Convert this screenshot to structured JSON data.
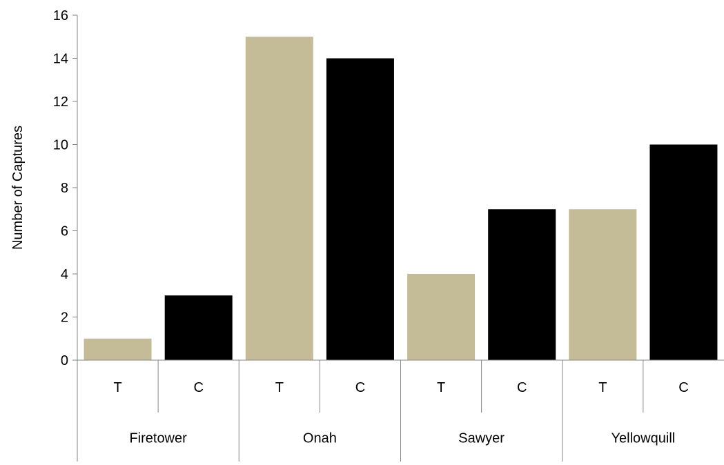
{
  "chart_data": {
    "type": "bar",
    "title": "",
    "xlabel": "",
    "ylabel": "Number of Captures",
    "ylim": [
      0,
      16
    ],
    "yticks": [
      0,
      2,
      4,
      6,
      8,
      10,
      12,
      14,
      16
    ],
    "grid": false,
    "legend": "none",
    "groups": [
      {
        "name": "Firetower",
        "bars": [
          {
            "label": "T",
            "value": 1
          },
          {
            "label": "C",
            "value": 3
          }
        ]
      },
      {
        "name": "Onah",
        "bars": [
          {
            "label": "T",
            "value": 15
          },
          {
            "label": "C",
            "value": 14
          }
        ]
      },
      {
        "name": "Sawyer",
        "bars": [
          {
            "label": "T",
            "value": 4
          },
          {
            "label": "C",
            "value": 7
          }
        ]
      },
      {
        "name": "Yellowquill",
        "bars": [
          {
            "label": "T",
            "value": 7
          },
          {
            "label": "C",
            "value": 10
          }
        ]
      }
    ],
    "colors": {
      "T": "#c4bc96",
      "C": "#000000",
      "axis": "#868686"
    }
  }
}
